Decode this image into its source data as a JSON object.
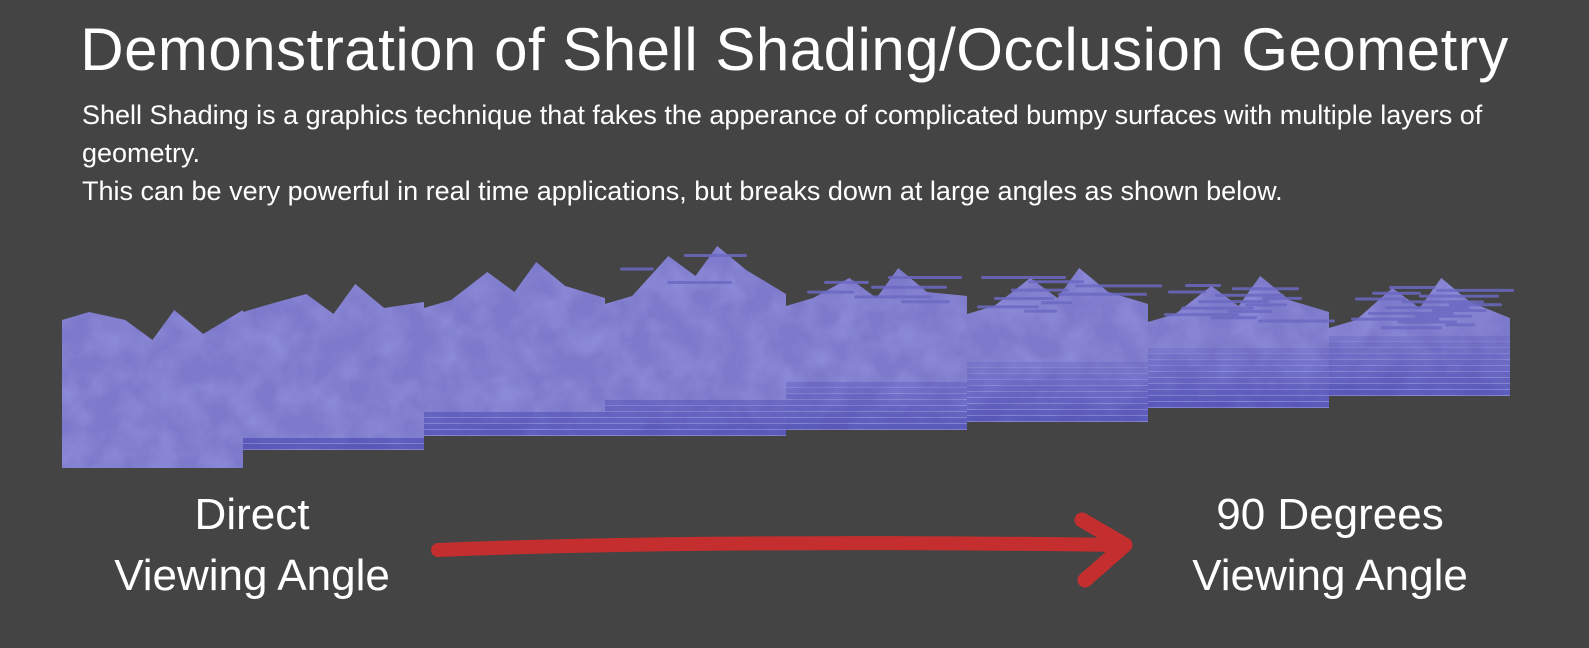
{
  "title": "Demonstration of Shell Shading/Occlusion Geometry",
  "description": {
    "line1": "Shell Shading is a graphics technique that fakes the apperance of complicated bumpy surfaces with multiple layers of geometry.",
    "line2": "This can be very powerful in real time applications, but breaks down at large angles as shown below."
  },
  "labels": {
    "left": [
      "Direct",
      "Viewing Angle"
    ],
    "right": [
      "90 Degrees",
      "Viewing Angle"
    ]
  },
  "panel_count": 8,
  "colors": {
    "background": "#444444",
    "text": "#ffffff",
    "shell_light": "#7e7acb",
    "shell_mid": "#6b68c2",
    "shell_dark": "#3b3cab",
    "arrow": "#c52e2e"
  }
}
